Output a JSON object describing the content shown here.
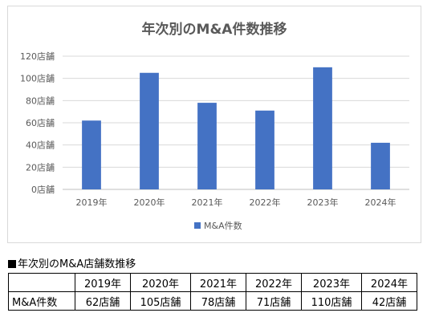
{
  "chart_data": {
    "type": "bar",
    "title": "年次別のM&A件数推移",
    "categories": [
      "2019年",
      "2020年",
      "2021年",
      "2022年",
      "2023年",
      "2024年"
    ],
    "series": [
      {
        "name": "M&A件数",
        "values": [
          62,
          105,
          78,
          71,
          110,
          42
        ]
      }
    ],
    "yticks": [
      "0店舗",
      "20店舗",
      "40店舗",
      "60店舗",
      "80店舗",
      "100店舗",
      "120店舗"
    ],
    "ylim": [
      0,
      120
    ],
    "grid": true,
    "legend": "bottom",
    "bar_color": "#4472c4"
  },
  "table": {
    "caption": "年次別のM&A店舗数推移",
    "header": [
      "",
      "2019年",
      "2020年",
      "2021年",
      "2022年",
      "2023年",
      "2024年"
    ],
    "rows": [
      {
        "label": "M&A件数",
        "cells": [
          "62店舗",
          "105店舗",
          "78店舗",
          "71店舗",
          "110店舗",
          "42店舗"
        ]
      }
    ]
  }
}
